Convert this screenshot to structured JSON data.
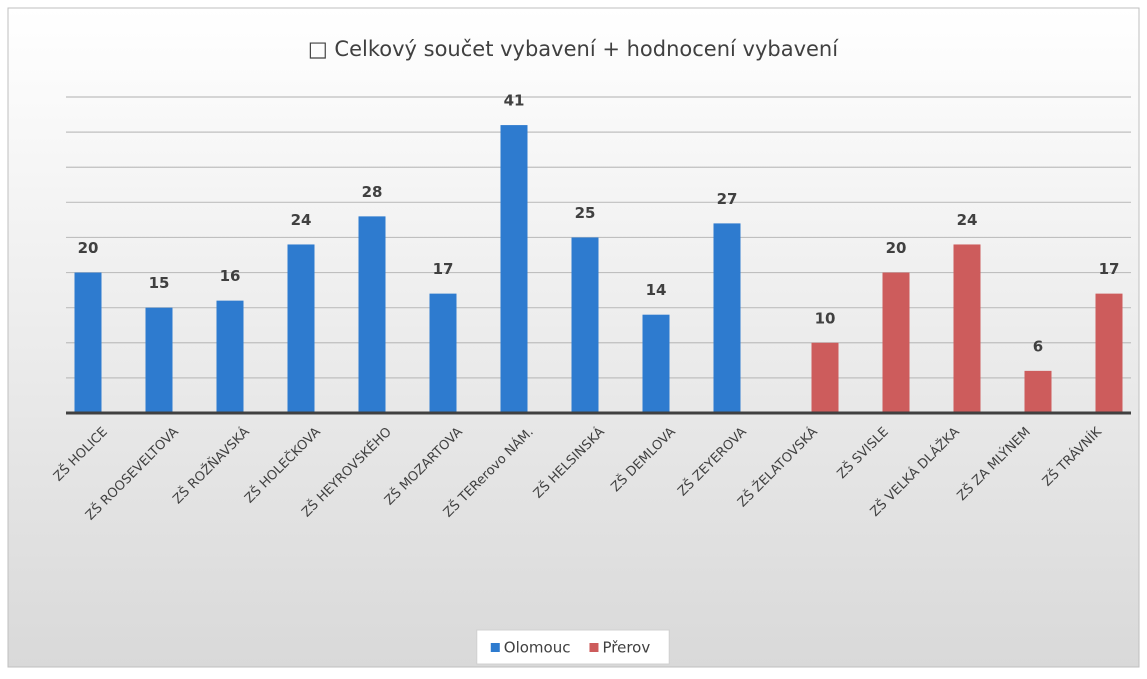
{
  "chart_data": {
    "type": "bar",
    "title": "□ Celkový součet vybavení + hodnocení vybavení",
    "categories": [
      "ZŠ HOLICE",
      "ZŠ ROOSEVELTOVA",
      "ZŠ ROŽŇAVSKÁ",
      "ZŠ HOLEČKOVA",
      "ZŠ HEYROVSKÉHO",
      "ZŠ MOZARTOVA",
      "ZŠ TERerovo NÁM.",
      "ZŠ HELSINSKÁ",
      "ZŠ DEMLOVA",
      "ZŠ ZEYEROVA",
      "ZŠ ŽELATOVSKÁ",
      "ZŠ SVISLE",
      "ZŠ VELKÁ DLÁŽKA",
      "ZŠ ZA MLÝNEM",
      "ZŠ TRÁVNÍK"
    ],
    "series": [
      {
        "name": "Olomouc",
        "color": "#2e7bcf",
        "values": [
          20,
          15,
          16,
          24,
          28,
          17,
          41,
          25,
          14,
          27,
          null,
          null,
          null,
          null,
          null
        ]
      },
      {
        "name": "Přerov",
        "color": "#cd5c5c",
        "values": [
          null,
          null,
          null,
          null,
          null,
          null,
          null,
          null,
          null,
          null,
          10,
          20,
          24,
          6,
          17
        ]
      }
    ],
    "ylim": [
      0,
      45
    ],
    "yticks": [
      0,
      5,
      10,
      15,
      20,
      25,
      30,
      35,
      40,
      45
    ],
    "grid": true,
    "legend": "bottom"
  }
}
